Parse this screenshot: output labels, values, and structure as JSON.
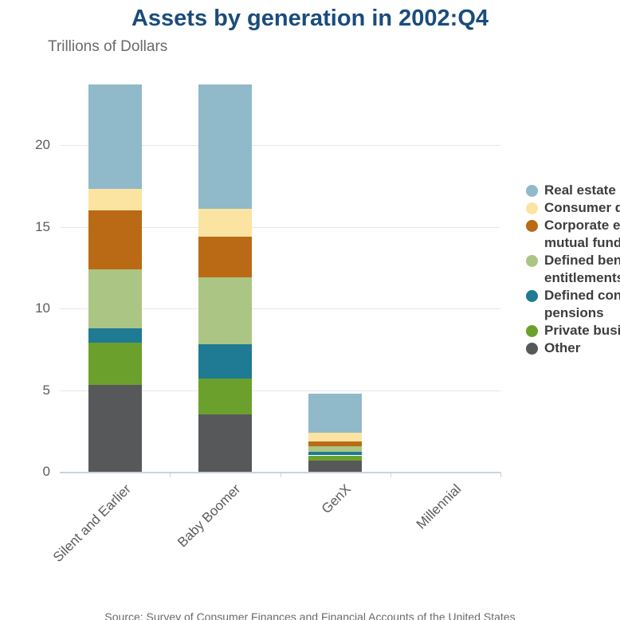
{
  "title": "Assets by generation in 2002:Q4",
  "subtitle": "Trillions of Dollars",
  "source": "Source: Survey of Consumer Finances and Financial Accounts of the United States",
  "legend": {
    "items": [
      {
        "series": "Real estate",
        "lines": [
          "Real estate"
        ],
        "color": "#90B9C9"
      },
      {
        "series": "Consumer durables",
        "lines": [
          "Consumer durables"
        ],
        "color": "#FBE3A2"
      },
      {
        "series": "Corporate equities and mutual funds",
        "lines": [
          "Corporate equities and",
          "mutual funds"
        ],
        "color": "#BA6A14"
      },
      {
        "series": "Defined benefit entitlements",
        "lines": [
          "Defined benefit",
          "entitlements"
        ],
        "color": "#ABC584"
      },
      {
        "series": "Defined contribution pensions",
        "lines": [
          "Defined contribution",
          "pensions"
        ],
        "color": "#1F7A93"
      },
      {
        "series": "Private businesses",
        "lines": [
          "Private businesses"
        ],
        "color": "#6CA02C"
      },
      {
        "series": "Other",
        "lines": [
          "Other"
        ],
        "color": "#57585A"
      }
    ]
  },
  "chart_data": {
    "type": "bar",
    "stacked": true,
    "title": "Assets by generation in 2002:Q4",
    "ylabel": "Trillions of Dollars",
    "categories": [
      "Silent and Earlier",
      "Baby Boomer",
      "GenX",
      "Millennial"
    ],
    "series": [
      {
        "name": "Other",
        "color": "#57585A",
        "values": [
          5.3,
          3.5,
          0.7,
          0
        ]
      },
      {
        "name": "Private businesses",
        "color": "#6CA02C",
        "values": [
          2.6,
          2.2,
          0.3,
          0
        ]
      },
      {
        "name": "Defined contribution pensions",
        "color": "#1F7A93",
        "values": [
          0.9,
          2.1,
          0.2,
          0
        ]
      },
      {
        "name": "Defined benefit entitlements",
        "color": "#ABC584",
        "values": [
          3.6,
          4.1,
          0.35,
          0
        ]
      },
      {
        "name": "Corporate equities and mutual funds",
        "color": "#BA6A14",
        "values": [
          3.6,
          2.5,
          0.3,
          0
        ]
      },
      {
        "name": "Consumer durables",
        "color": "#FBE3A2",
        "values": [
          1.3,
          1.7,
          0.55,
          0
        ]
      },
      {
        "name": "Real estate",
        "color": "#90B9C9",
        "values": [
          6.4,
          7.6,
          2.4,
          0
        ]
      }
    ],
    "totals": [
      23.7,
      23.7,
      4.8,
      0
    ],
    "yticks": [
      0,
      5,
      10,
      15,
      20
    ],
    "ylim": [
      0,
      24.5
    ],
    "grid": true,
    "legend_position": "right"
  }
}
